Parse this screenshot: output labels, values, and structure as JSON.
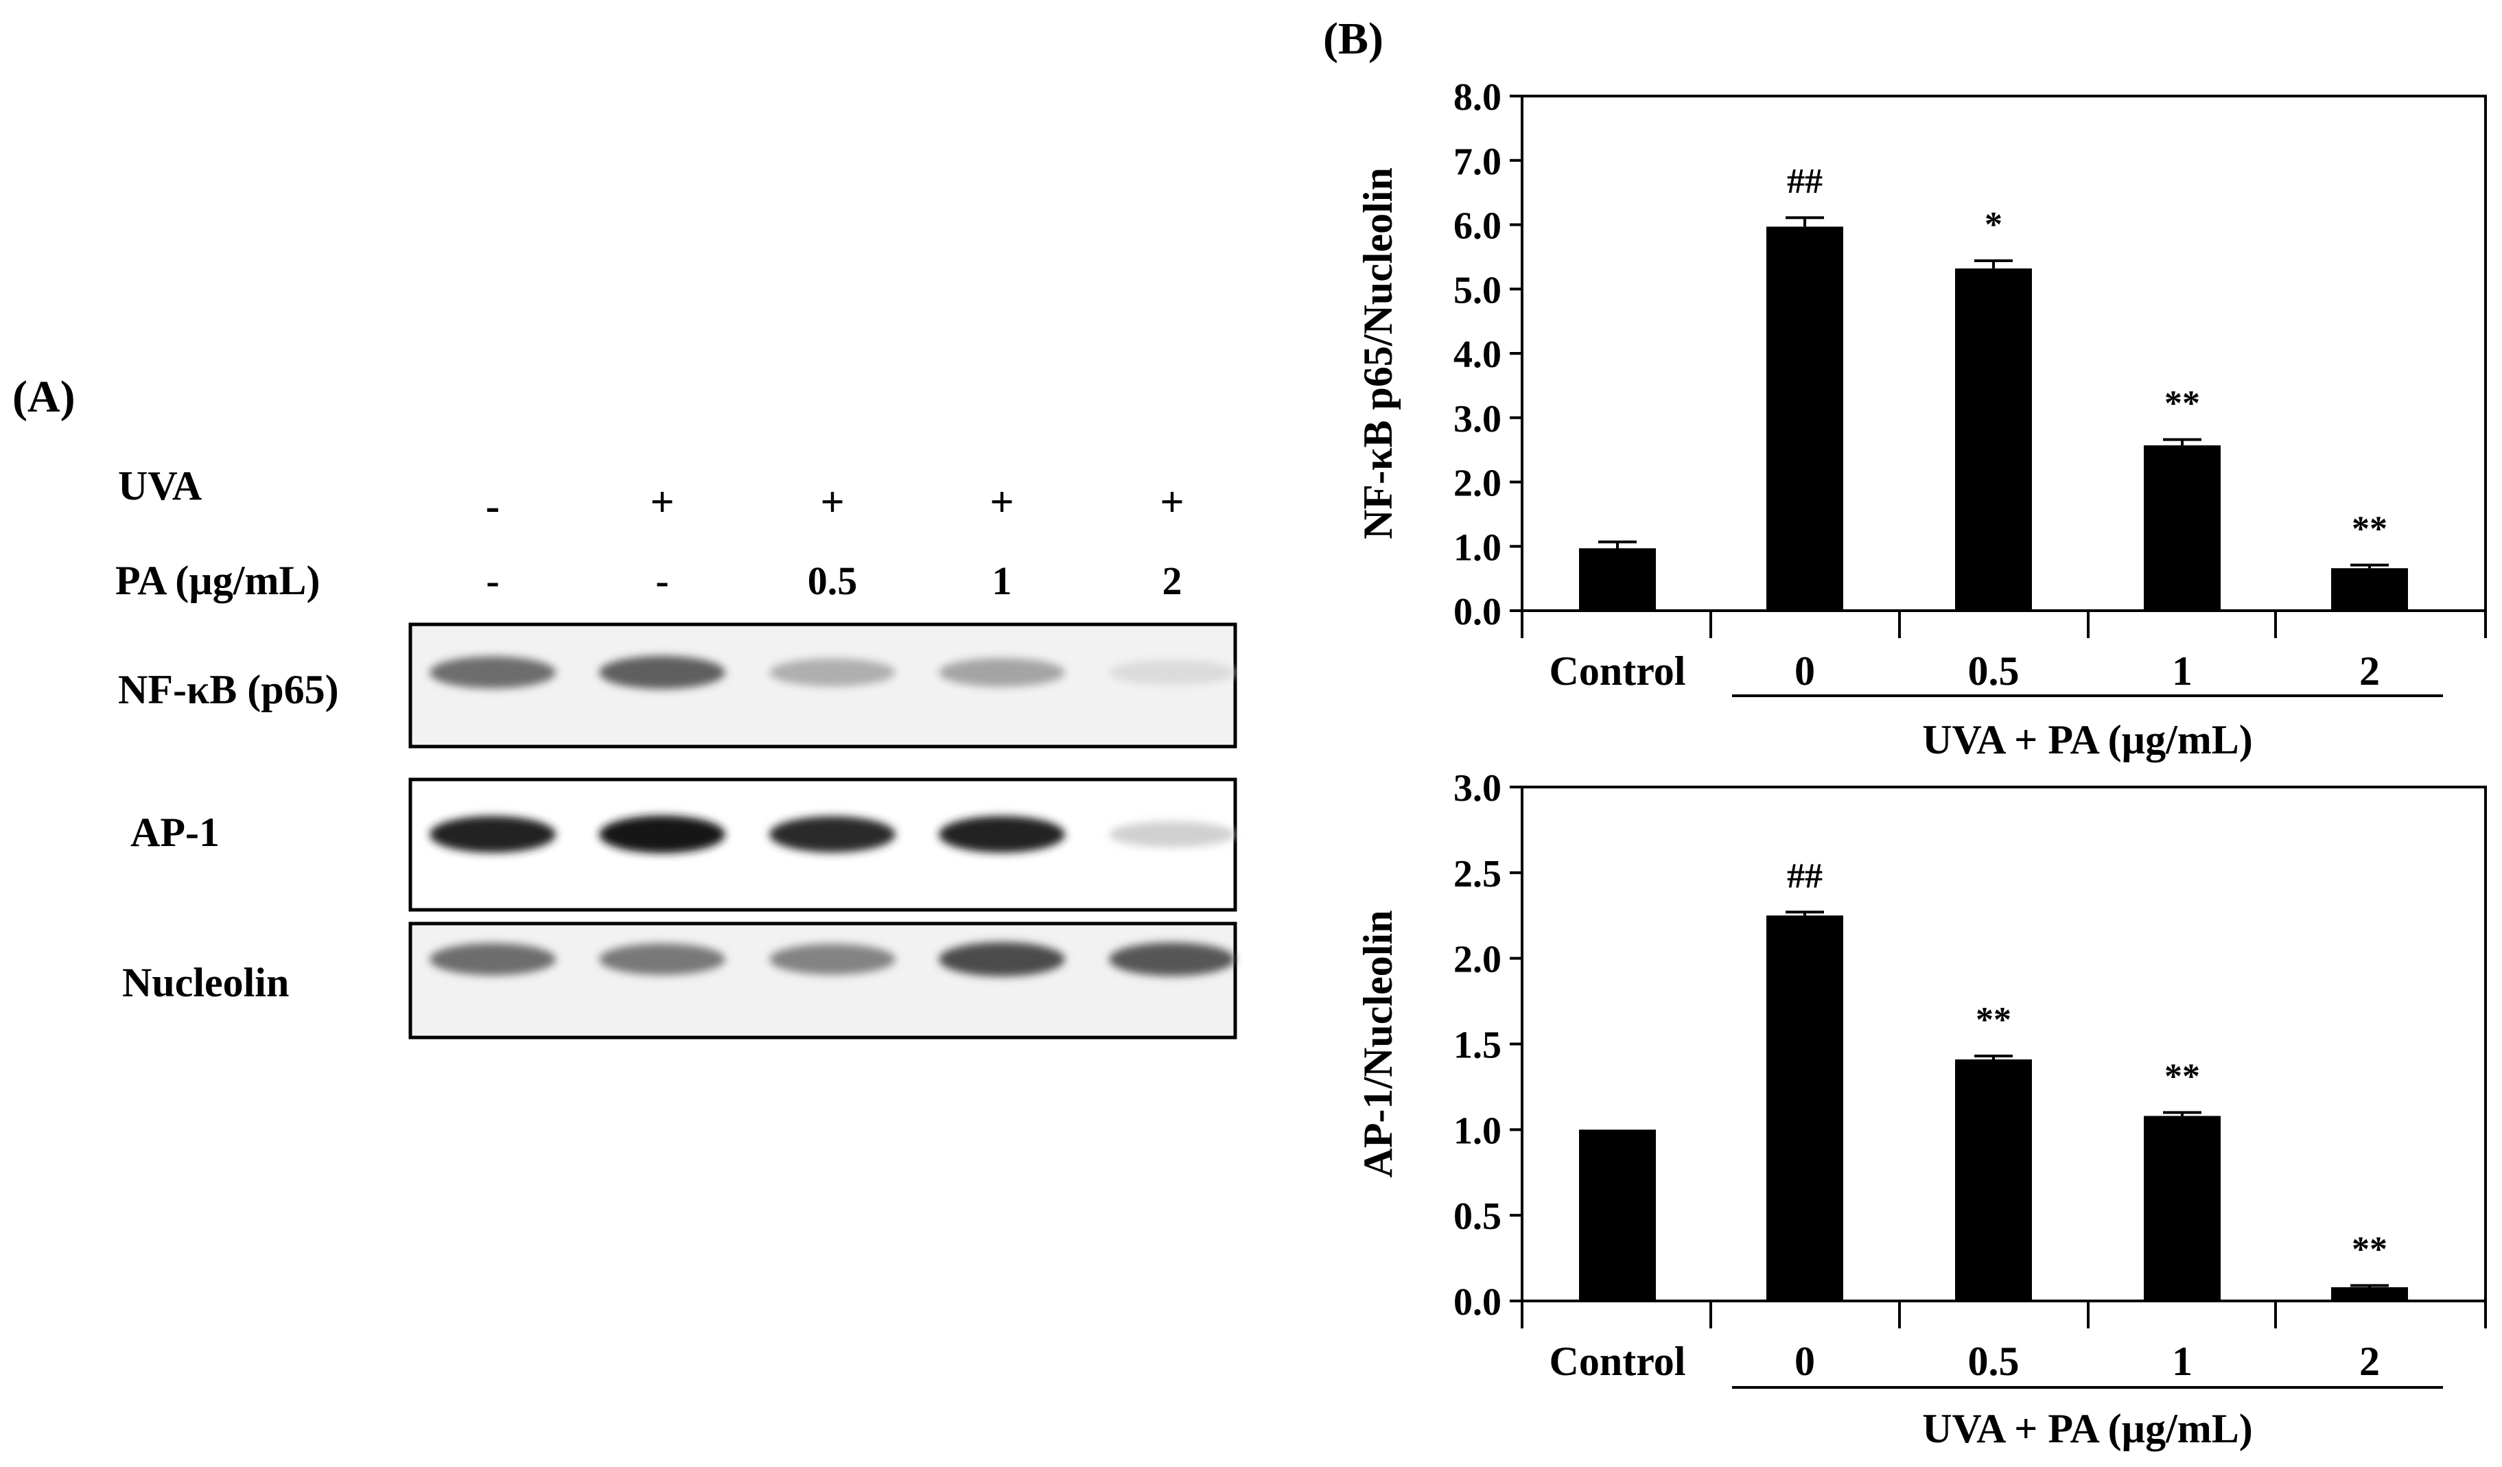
{
  "panel_a": {
    "label": "(A)",
    "row_labels": {
      "uva": "UVA",
      "pa": "PA (µg/mL)"
    },
    "uva_signs": [
      "-",
      "+",
      "+",
      "+",
      "+"
    ],
    "pa_values": [
      "-",
      "-",
      "0.5",
      "1",
      "2"
    ],
    "blots": [
      {
        "name": "NF-κB (p65)",
        "intensities": [
          0.55,
          0.62,
          0.25,
          0.3,
          0.05
        ]
      },
      {
        "name": "AP-1",
        "intensities": [
          0.88,
          0.95,
          0.85,
          0.88,
          0.1
        ]
      },
      {
        "name": "Nucleolin",
        "intensities": [
          0.55,
          0.5,
          0.45,
          0.7,
          0.65
        ]
      }
    ]
  },
  "panel_b": {
    "label": "(B)"
  },
  "chart_data": [
    {
      "type": "bar",
      "ylabel": "NF-κB p65/Nucleolin",
      "ylim": [
        0,
        8
      ],
      "yticks": [
        "0.0",
        "1.0",
        "2.0",
        "3.0",
        "4.0",
        "5.0",
        "6.0",
        "7.0",
        "8.0"
      ],
      "categories": [
        "Control",
        "0",
        "0.5",
        "1",
        "2"
      ],
      "values": [
        0.97,
        5.97,
        5.32,
        2.57,
        0.66
      ],
      "errors": [
        0.1,
        0.14,
        0.12,
        0.09,
        0.05
      ],
      "annotations": [
        "",
        "##",
        "*",
        "**",
        "**"
      ],
      "group_label": "UVA + PA (µg/mL)",
      "bar_color": "#000000"
    },
    {
      "type": "bar",
      "ylabel": "AP-1/Nucleolin",
      "ylim": [
        0,
        3
      ],
      "yticks": [
        "0.0",
        "0.5",
        "1.0",
        "1.5",
        "2.0",
        "2.5",
        "3.0"
      ],
      "categories": [
        "Control",
        "0",
        "0.5",
        "1",
        "2"
      ],
      "values": [
        1.0,
        2.25,
        1.41,
        1.08,
        0.08
      ],
      "errors": [
        0,
        0.02,
        0.02,
        0.02,
        0.01
      ],
      "annotations": [
        "",
        "##",
        "**",
        "**",
        "**"
      ],
      "group_label": "UVA + PA (µg/mL)",
      "bar_color": "#000000"
    }
  ]
}
